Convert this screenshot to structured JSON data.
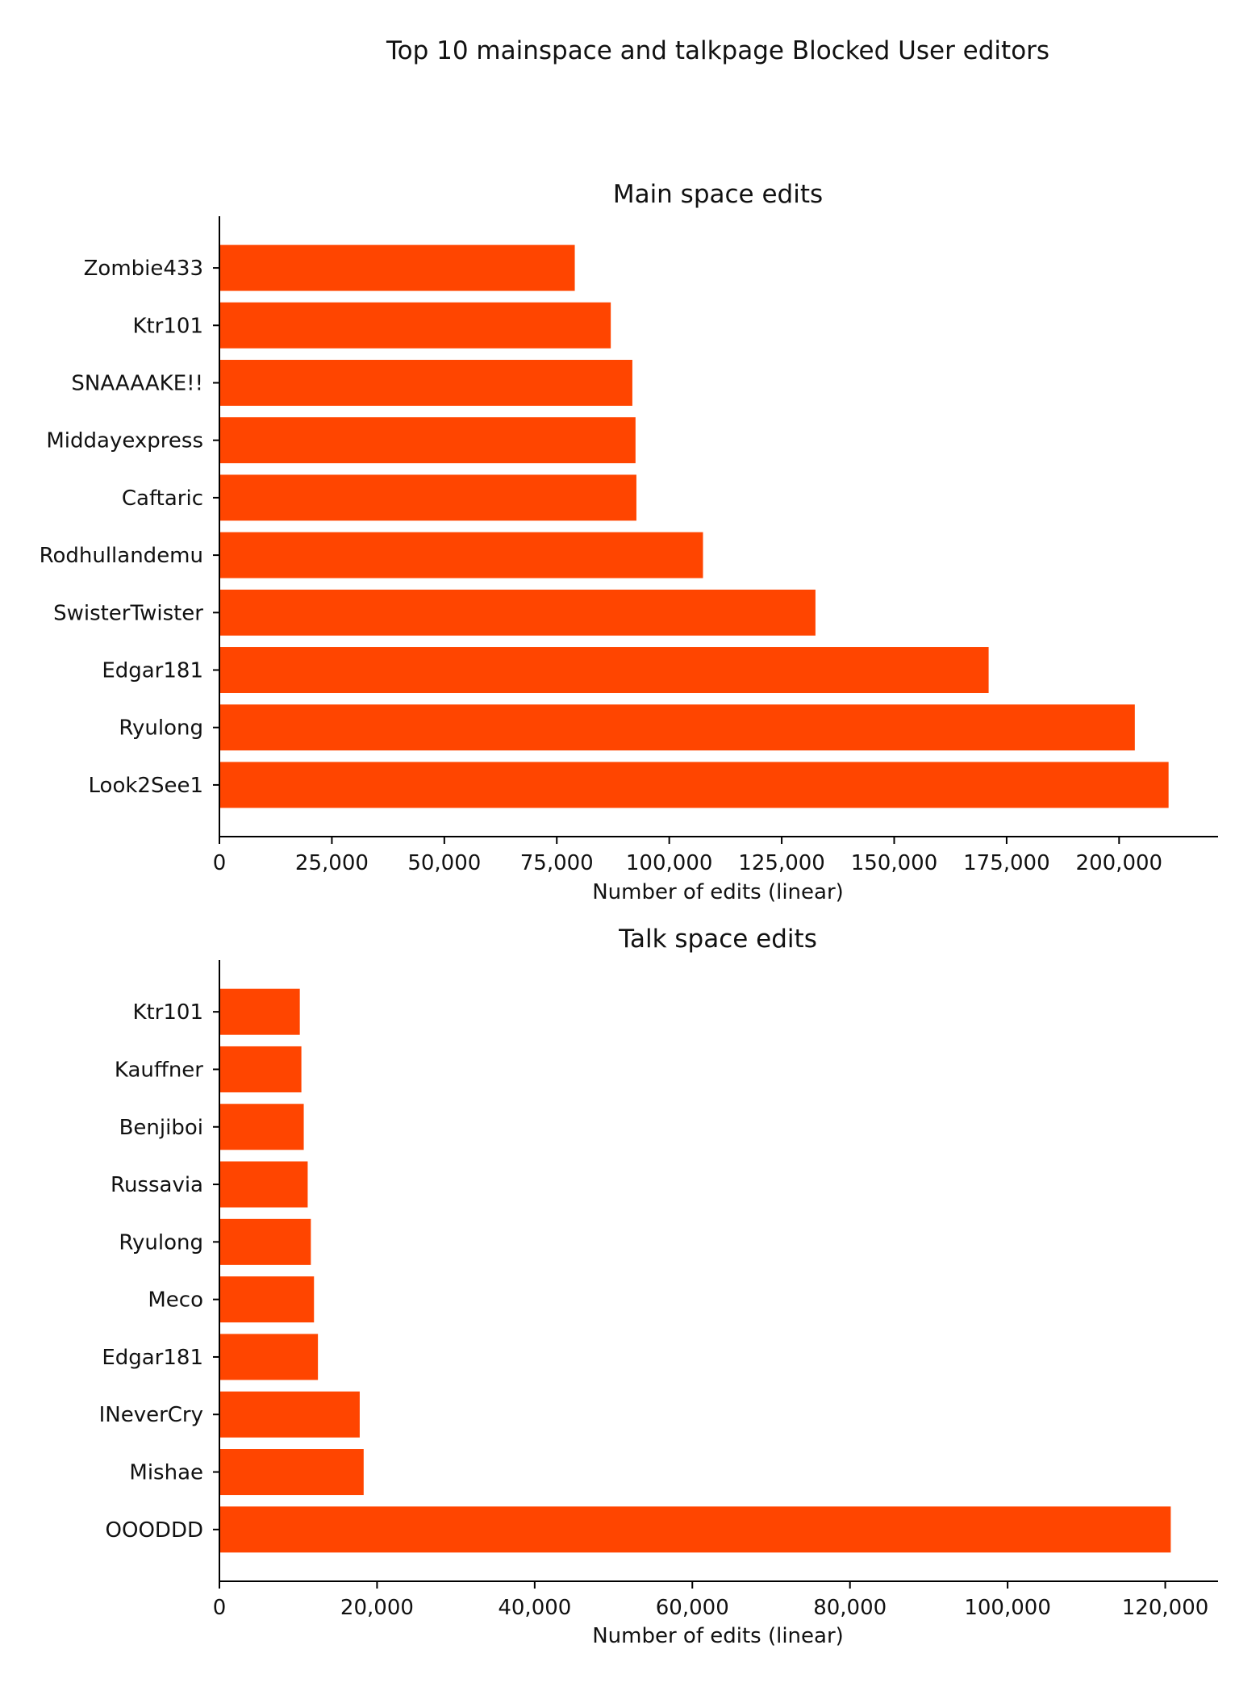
{
  "figure": {
    "suptitle": "Top 10 mainspace and talkpage Blocked User editors",
    "bar_color": "#ff4500"
  },
  "chart_data": [
    {
      "type": "bar",
      "orientation": "horizontal",
      "title": "Main space edits",
      "xlabel": "Number of edits (linear)",
      "ylabel": "",
      "categories": [
        "Look2See1",
        "Ryulong",
        "Edgar181",
        "SwisterTwister",
        "Rodhullandemu",
        "Caftaric",
        "Middayexpress",
        "SNAAAAKE!!",
        "Ktr101",
        "Zombie433"
      ],
      "values": [
        211000,
        203500,
        171000,
        132500,
        107500,
        92700,
        92500,
        91800,
        87000,
        79000
      ],
      "xlim": [
        0,
        222000
      ],
      "xticks": [
        0,
        25000,
        50000,
        75000,
        100000,
        125000,
        150000,
        175000,
        200000
      ],
      "xtick_labels": [
        "0",
        "25,000",
        "50,000",
        "75,000",
        "100,000",
        "125,000",
        "150,000",
        "175,000",
        "200,000"
      ]
    },
    {
      "type": "bar",
      "orientation": "horizontal",
      "title": "Talk space edits",
      "xlabel": "Number of edits (linear)",
      "ylabel": "",
      "categories": [
        "OOODDD",
        "Mishae",
        "INeverCry",
        "Edgar181",
        "Meco",
        "Ryulong",
        "Russavia",
        "Benjiboi",
        "Kauffner",
        "Ktr101"
      ],
      "values": [
        120700,
        18300,
        17800,
        12500,
        12000,
        11600,
        11200,
        10700,
        10400,
        10200
      ],
      "xlim": [
        0,
        126700
      ],
      "xticks": [
        0,
        20000,
        40000,
        60000,
        80000,
        100000,
        120000
      ],
      "xtick_labels": [
        "0",
        "20,000",
        "40,000",
        "60,000",
        "80,000",
        "100,000",
        "120,000"
      ]
    }
  ]
}
